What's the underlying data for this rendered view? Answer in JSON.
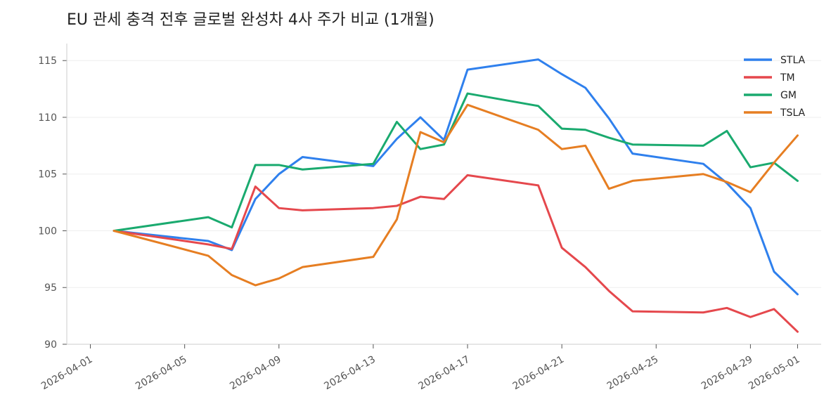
{
  "chart_data": {
    "type": "line",
    "title": "EU 관세 충격 전후 글로벌 완성차 4사 주가 비교 (1개월)",
    "xlabel": "",
    "ylabel": "",
    "x_ticks": [
      "2026-04-01",
      "2026-04-05",
      "2026-04-09",
      "2026-04-13",
      "2026-04-17",
      "2026-04-21",
      "2026-04-25",
      "2026-04-29",
      "2026-05-01"
    ],
    "y_ticks": [
      90,
      95,
      100,
      105,
      110,
      115
    ],
    "xlim": [
      "2026-03-31",
      "2026-05-02"
    ],
    "ylim": [
      90,
      116.5
    ],
    "grid": "horizontal",
    "legend_position": "top-right",
    "x": [
      "2026-04-02",
      "2026-04-06",
      "2026-04-07",
      "2026-04-08",
      "2026-04-09",
      "2026-04-10",
      "2026-04-13",
      "2026-04-14",
      "2026-04-15",
      "2026-04-16",
      "2026-04-17",
      "2026-04-20",
      "2026-04-21",
      "2026-04-22",
      "2026-04-23",
      "2026-04-24",
      "2026-04-27",
      "2026-04-28",
      "2026-04-29",
      "2026-04-30",
      "2026-05-01"
    ],
    "series": [
      {
        "name": "STLA",
        "color": "#2f80ed",
        "values": [
          100.0,
          99.1,
          98.3,
          102.8,
          105.0,
          106.5,
          105.7,
          108.1,
          110.0,
          108.0,
          114.2,
          115.1,
          113.8,
          112.6,
          109.9,
          106.8,
          105.9,
          104.2,
          102.0,
          96.4,
          94.4
        ]
      },
      {
        "name": "TM",
        "color": "#e5484d",
        "values": [
          100.0,
          98.8,
          98.4,
          103.9,
          102.0,
          101.8,
          102.0,
          102.2,
          103.0,
          102.8,
          104.9,
          104.0,
          98.5,
          96.8,
          94.7,
          92.9,
          92.8,
          93.2,
          92.4,
          93.1,
          91.1
        ]
      },
      {
        "name": "GM",
        "color": "#1aaa6f",
        "values": [
          100.0,
          101.2,
          100.3,
          105.8,
          105.8,
          105.4,
          105.9,
          109.6,
          107.2,
          107.6,
          112.1,
          111.0,
          109.0,
          108.9,
          108.2,
          107.6,
          107.5,
          108.8,
          105.6,
          106.0,
          104.4
        ]
      },
      {
        "name": "TSLA",
        "color": "#e67e22",
        "values": [
          100.0,
          97.8,
          96.1,
          95.2,
          95.8,
          96.8,
          97.7,
          101.0,
          108.7,
          107.8,
          111.1,
          108.9,
          107.2,
          107.5,
          103.7,
          104.4,
          105.0,
          104.3,
          103.4,
          106.0,
          108.4
        ]
      }
    ]
  }
}
